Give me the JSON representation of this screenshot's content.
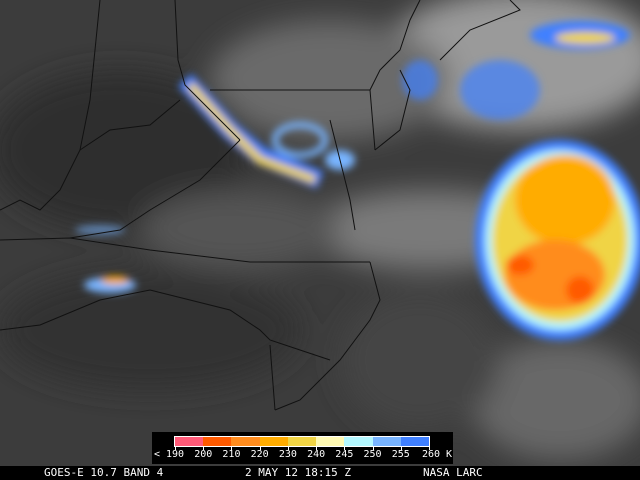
{
  "footer": {
    "satellite": "GOES-E 10.7 BAND 4",
    "datetime": "2 MAY 12 18:15 Z",
    "credit": "NASA LARC"
  },
  "legend": {
    "labels": [
      "< 190",
      "200",
      "210",
      "220",
      "230",
      "240",
      "245",
      "250",
      "255",
      "260 K"
    ],
    "colors": [
      "#ff5a78",
      "#ff5a00",
      "#ff8c1e",
      "#ffac00",
      "#f0d444",
      "#fffab4",
      "#b4f8ff",
      "#78b4ff",
      "#4080ff"
    ]
  }
}
